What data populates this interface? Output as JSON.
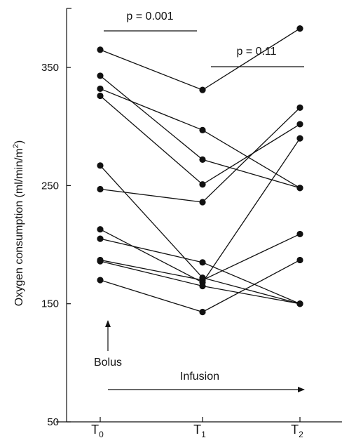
{
  "chart_data": {
    "type": "line",
    "categories": [
      "T",
      "T",
      "T"
    ],
    "category_subscripts": [
      "0",
      "1",
      "2"
    ],
    "ylabel": "Oxygen consumption (ml/min/m",
    "ylabel_superscript": "2",
    "ylabel_close": ")",
    "ylim": [
      50,
      400
    ],
    "yticks": [
      50,
      150,
      250,
      350
    ],
    "grid": false,
    "series": [
      {
        "values": [
          365,
          331,
          383
        ]
      },
      {
        "values": [
          343,
          272,
          248
        ]
      },
      {
        "values": [
          332,
          297,
          248
        ]
      },
      {
        "values": [
          326,
          251,
          302
        ]
      },
      {
        "values": [
          267,
          172,
          150
        ]
      },
      {
        "values": [
          247,
          236,
          316
        ]
      },
      {
        "values": [
          213,
          168,
          290
        ]
      },
      {
        "values": [
          205,
          185,
          150
        ]
      },
      {
        "values": [
          187,
          170,
          209
        ]
      },
      {
        "values": [
          170,
          143,
          187
        ]
      },
      {
        "values": [
          186,
          165,
          150
        ]
      }
    ],
    "annotations": {
      "p1": "p = 0.001",
      "p2": "p = 0.11",
      "bolus": "Bolus",
      "infusion": "Infusion"
    },
    "colors": {
      "line": "#111111",
      "marker": "#111111"
    }
  }
}
